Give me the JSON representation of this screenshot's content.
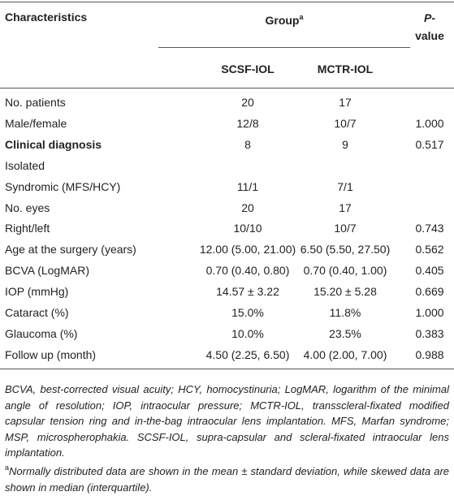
{
  "table": {
    "header": {
      "characteristics": "Characteristics",
      "group": "Group",
      "group_note": "a",
      "p_value": "P-value",
      "columns": [
        "SCSF-IOL",
        "MCTR-IOL"
      ]
    },
    "rows": [
      {
        "cells": [
          "No. patients",
          "20",
          "17",
          null
        ]
      },
      {
        "cells": [
          "Male/female",
          "12/8",
          "10/7",
          "1.000"
        ]
      },
      {
        "cells": [
          "Clinical diagnosis",
          "8",
          "9",
          "0.517"
        ],
        "bold_label": true
      },
      {
        "cells": [
          "Isolated",
          null,
          null,
          null
        ]
      },
      {
        "cells": [
          "Syndromic (MFS/HCY)",
          "11/1",
          "7/1",
          null
        ]
      },
      {
        "cells": [
          "No. eyes",
          "20",
          "17",
          null
        ]
      },
      {
        "cells": [
          "Right/left",
          "10/10",
          "10/7",
          "0.743"
        ]
      },
      {
        "cells": [
          "Age at the surgery (years)",
          "12.00 (5.00, 21.00)",
          "6.50 (5.50, 27.50)",
          "0.562"
        ]
      },
      {
        "cells": [
          "BCVA (LogMAR)",
          "0.70 (0.40, 0.80)",
          "0.70 (0.40, 1.00)",
          "0.405"
        ]
      },
      {
        "cells": [
          "IOP (mmHg)",
          "14.57 ± 3.22",
          "15.20 ± 5.28",
          "0.669"
        ]
      },
      {
        "cells": [
          "Cataract (%)",
          "15.0%",
          "11.8%",
          "1.000"
        ]
      },
      {
        "cells": [
          "Glaucoma (%)",
          "10.0%",
          "23.5%",
          "0.383"
        ]
      },
      {
        "cells": [
          "Follow up (month)",
          "4.50 (2.25, 6.50)",
          "4.00 (2.00, 7.00)",
          "0.988"
        ]
      }
    ]
  },
  "footnotes": {
    "abbreviations": "BCVA, best-corrected visual acuity; HCY, homocystinuria; LogMAR, logarithm of the minimal angle of resolution; IOP, intraocular pressure; MCTR-IOL, transscleral-fixated modified capsular tension ring and in-the-bag intraocular lens implantation. MFS, Marfan syndrome; MSP, microspherophakia. SCSF-IOL, supra-capsular and scleral-fixated intraocular lens implantation.",
    "note_mark": "a",
    "note": "Normally distributed data are shown in the mean ± standard deviation, while skewed data are shown in median (interquartile)."
  }
}
